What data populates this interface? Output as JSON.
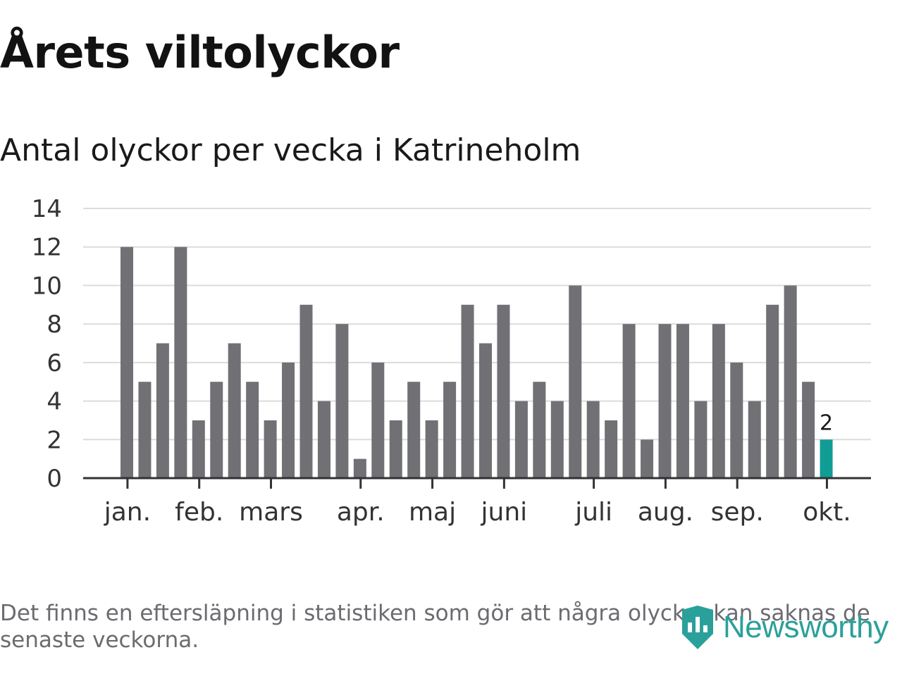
{
  "header": {
    "title": "Årets viltolyckor",
    "subtitle": "Antal olyckor per vecka i Katrineholm"
  },
  "footer": {
    "note": "Det finns en eftersläpning i statistiken som gör att några olyckor kan saknas de senaste veckorna.",
    "brand": "Newsworthy",
    "brand_icon": "newsworthy-logo-icon"
  },
  "colors": {
    "bar": "#707075",
    "highlight": "#119c95",
    "grid": "#dcdcdc",
    "axis": "#333333",
    "brand": "#2aa09a"
  },
  "chart_data": {
    "type": "bar",
    "title": "Antal olyckor per vecka i Katrineholm",
    "xlabel": "",
    "ylabel": "",
    "ylim": [
      0,
      14
    ],
    "yticks": [
      0,
      2,
      4,
      6,
      8,
      10,
      12,
      14
    ],
    "grid": true,
    "values": [
      12,
      5,
      7,
      12,
      3,
      5,
      7,
      5,
      3,
      6,
      9,
      4,
      8,
      1,
      6,
      3,
      5,
      3,
      5,
      9,
      7,
      9,
      4,
      5,
      4,
      10,
      4,
      3,
      8,
      2,
      8,
      8,
      4,
      8,
      6,
      4,
      9,
      10,
      5,
      2
    ],
    "highlight_index": 39,
    "highlight_label": "2",
    "month_ticks": [
      {
        "label": "jan.",
        "index": 0.35
      },
      {
        "label": "feb.",
        "index": 4.35
      },
      {
        "label": "mars",
        "index": 8.35
      },
      {
        "label": "apr.",
        "index": 13.35
      },
      {
        "label": "maj",
        "index": 17.35
      },
      {
        "label": "juni",
        "index": 21.35
      },
      {
        "label": "juli",
        "index": 26.35
      },
      {
        "label": "aug.",
        "index": 30.35
      },
      {
        "label": "sep.",
        "index": 34.35
      },
      {
        "label": "okt.",
        "index": 39.35
      }
    ]
  }
}
